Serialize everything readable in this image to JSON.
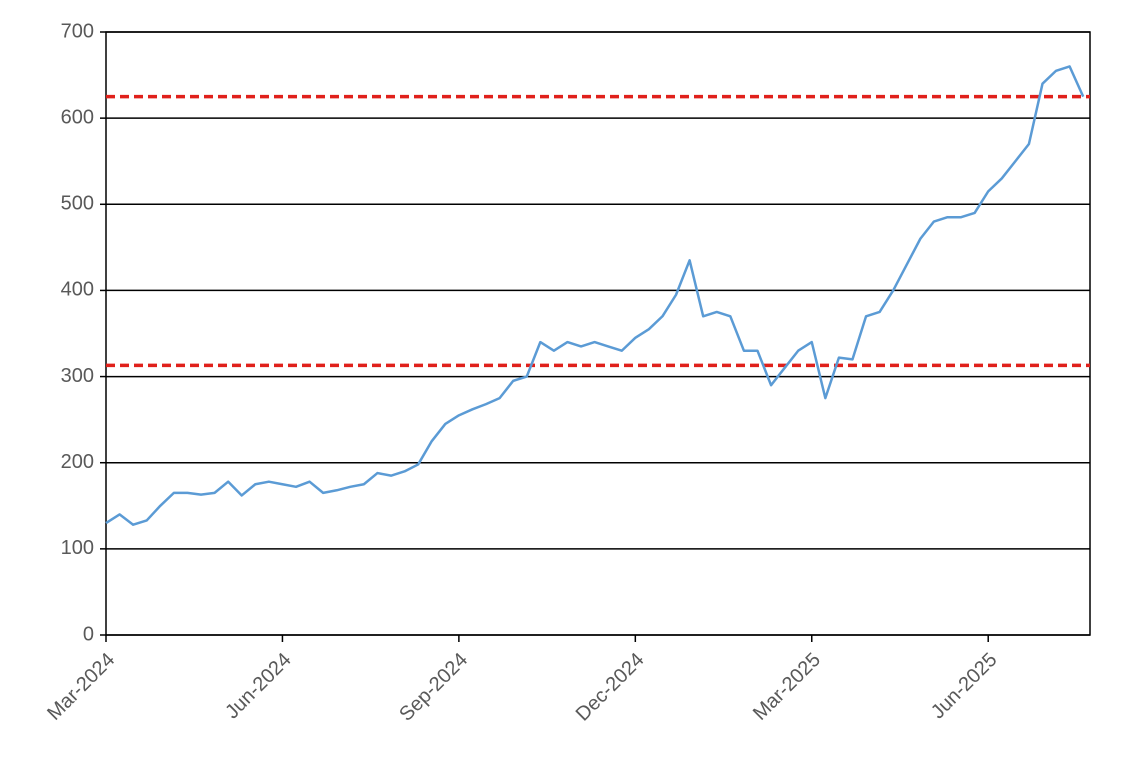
{
  "chart_data": {
    "type": "line",
    "categories": [
      "Mar-2024",
      null,
      null,
      null,
      null,
      null,
      null,
      null,
      null,
      null,
      null,
      null,
      null,
      "Jun-2024",
      null,
      null,
      null,
      null,
      null,
      null,
      null,
      null,
      null,
      null,
      null,
      null,
      "Sep-2024",
      null,
      null,
      null,
      null,
      null,
      null,
      null,
      null,
      null,
      null,
      null,
      null,
      "Dec-2024",
      null,
      null,
      null,
      null,
      null,
      null,
      null,
      null,
      null,
      null,
      null,
      null,
      "Mar-2025",
      null,
      null,
      null,
      null,
      null,
      null,
      null,
      null,
      null,
      null,
      null,
      null,
      "Jun-2025",
      null,
      null,
      null,
      null,
      null,
      null,
      null
    ],
    "series": [
      {
        "color": "#5b9bd5",
        "values": [
          130,
          140,
          128,
          133,
          150,
          165,
          165,
          163,
          165,
          178,
          162,
          175,
          178,
          175,
          172,
          178,
          165,
          168,
          172,
          175,
          188,
          185,
          190,
          198,
          225,
          245,
          255,
          262,
          268,
          275,
          295,
          300,
          340,
          330,
          340,
          335,
          340,
          335,
          330,
          345,
          355,
          370,
          395,
          435,
          370,
          375,
          370,
          330,
          330,
          290,
          310,
          330,
          340,
          275,
          322,
          320,
          370,
          375,
          400,
          430,
          460,
          480,
          485,
          485,
          490,
          515,
          530,
          550,
          570,
          640,
          655,
          660,
          625
        ]
      }
    ],
    "reference_lines": {
      "color": "#e0201b",
      "values": [
        313,
        625
      ]
    },
    "ylim": [
      0,
      700
    ],
    "yticks": [
      0,
      100,
      200,
      300,
      400,
      500,
      600,
      700
    ],
    "grid": true
  }
}
